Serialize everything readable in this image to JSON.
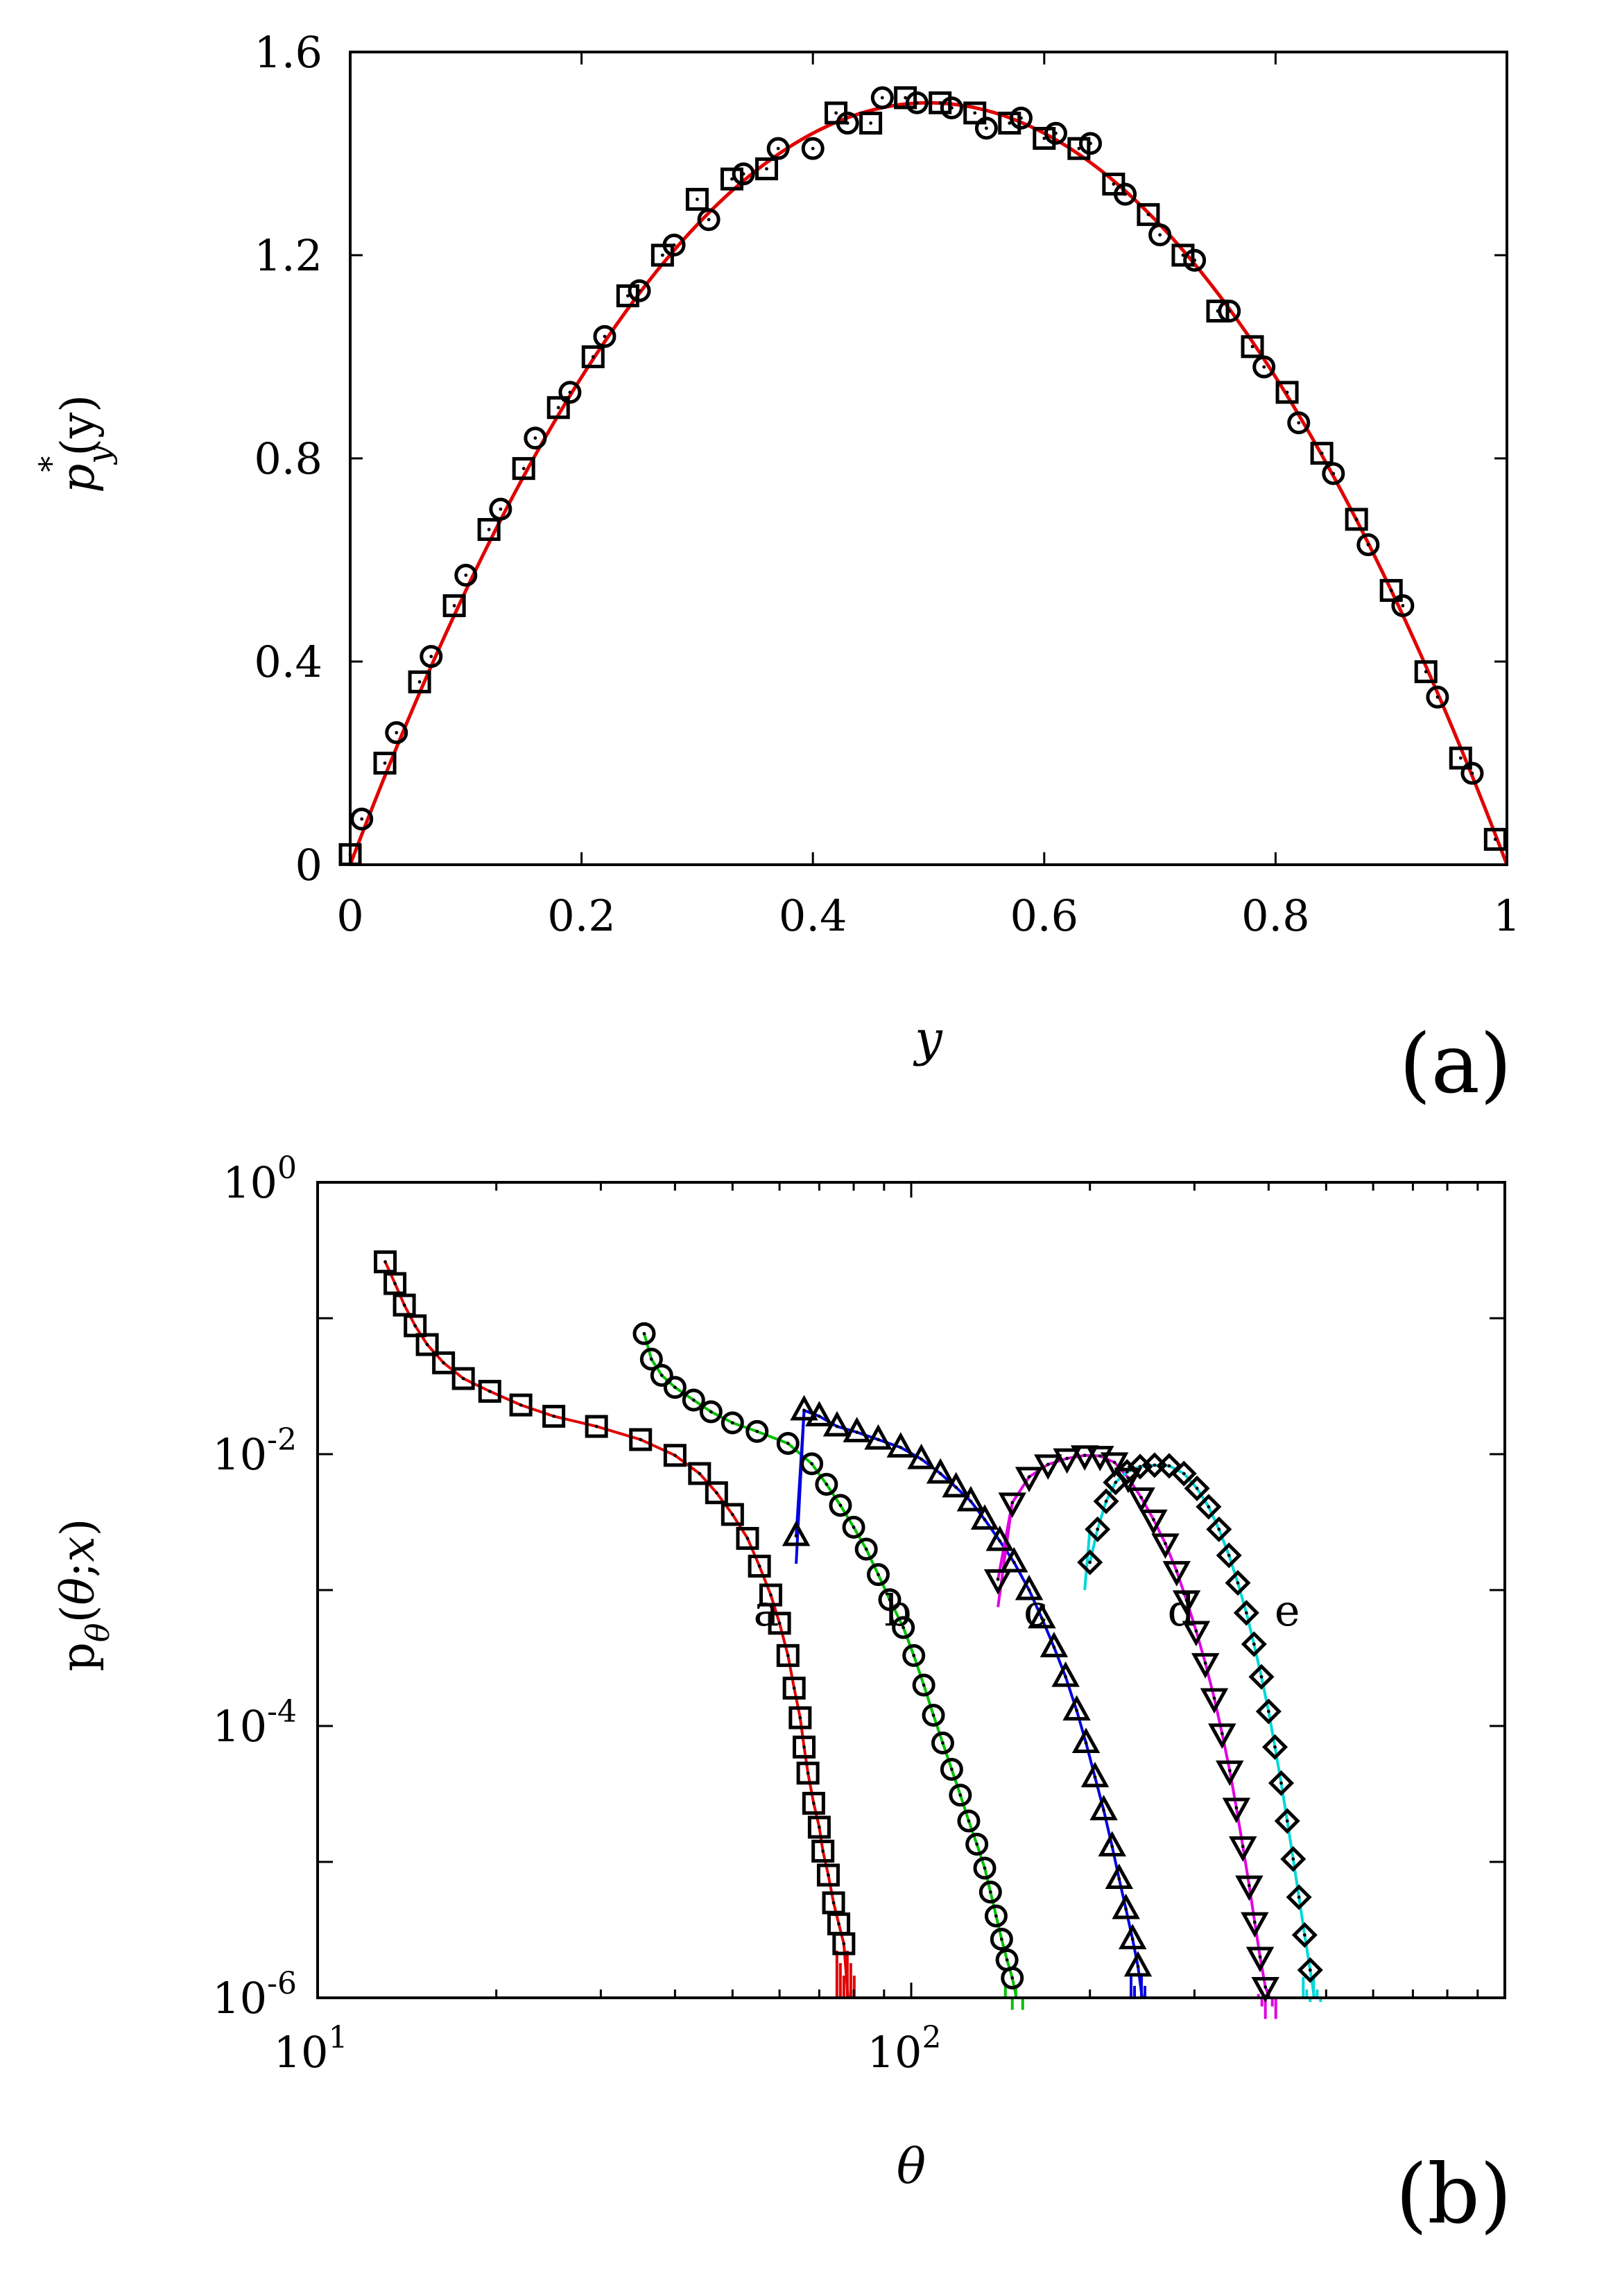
{
  "chart_data": [
    {
      "id": "a",
      "type": "line+scatter",
      "panel_label": "(a)",
      "xlabel": "y",
      "ylabel": "p",
      "ylabel_star": "*",
      "ylabel_sub": "y",
      "ylabel_arg": "(y)",
      "xlim": [
        0,
        1
      ],
      "ylim": [
        0,
        1.6
      ],
      "xticks": [
        0,
        0.2,
        0.4,
        0.6,
        0.8,
        1
      ],
      "xtick_labels": [
        "0",
        "0.2",
        "0.4",
        "0.6",
        "0.8",
        "1"
      ],
      "yticks": [
        0,
        0.4,
        0.8,
        1.2,
        1.6
      ],
      "ytick_labels": [
        "0",
        "0.4",
        "0.8",
        "1.2",
        "1.6"
      ],
      "curve": {
        "name": "theory",
        "color": "#e00000",
        "formula": "6*y*(1-y)"
      },
      "series": [
        {
          "name": "squares",
          "marker": "square",
          "points": [
            [
              0.0,
              0.02
            ],
            [
              0.03,
              0.2
            ],
            [
              0.06,
              0.36
            ],
            [
              0.09,
              0.51
            ],
            [
              0.12,
              0.66
            ],
            [
              0.15,
              0.78
            ],
            [
              0.18,
              0.9
            ],
            [
              0.21,
              1.0
            ],
            [
              0.24,
              1.12
            ],
            [
              0.27,
              1.2
            ],
            [
              0.3,
              1.31
            ],
            [
              0.33,
              1.35
            ],
            [
              0.36,
              1.37
            ],
            [
              0.42,
              1.48
            ],
            [
              0.45,
              1.46
            ],
            [
              0.48,
              1.51
            ],
            [
              0.51,
              1.5
            ],
            [
              0.54,
              1.48
            ],
            [
              0.57,
              1.46
            ],
            [
              0.6,
              1.43
            ],
            [
              0.63,
              1.41
            ],
            [
              0.66,
              1.34
            ],
            [
              0.69,
              1.28
            ],
            [
              0.72,
              1.2
            ],
            [
              0.75,
              1.09
            ],
            [
              0.78,
              1.02
            ],
            [
              0.81,
              0.93
            ],
            [
              0.84,
              0.81
            ],
            [
              0.87,
              0.68
            ],
            [
              0.9,
              0.54
            ],
            [
              0.93,
              0.38
            ],
            [
              0.96,
              0.21
            ],
            [
              0.99,
              0.05
            ]
          ]
        },
        {
          "name": "circles",
          "marker": "circle",
          "points": [
            [
              0.01,
              0.09
            ],
            [
              0.04,
              0.26
            ],
            [
              0.07,
              0.41
            ],
            [
              0.1,
              0.57
            ],
            [
              0.13,
              0.7
            ],
            [
              0.16,
              0.84
            ],
            [
              0.19,
              0.93
            ],
            [
              0.22,
              1.04
            ],
            [
              0.25,
              1.13
            ],
            [
              0.28,
              1.22
            ],
            [
              0.31,
              1.27
            ],
            [
              0.34,
              1.36
            ],
            [
              0.37,
              1.41
            ],
            [
              0.4,
              1.41
            ],
            [
              0.43,
              1.46
            ],
            [
              0.46,
              1.51
            ],
            [
              0.49,
              1.5
            ],
            [
              0.52,
              1.49
            ],
            [
              0.55,
              1.45
            ],
            [
              0.58,
              1.47
            ],
            [
              0.61,
              1.44
            ],
            [
              0.64,
              1.42
            ],
            [
              0.67,
              1.32
            ],
            [
              0.7,
              1.24
            ],
            [
              0.73,
              1.19
            ],
            [
              0.76,
              1.09
            ],
            [
              0.79,
              0.98
            ],
            [
              0.82,
              0.87
            ],
            [
              0.85,
              0.77
            ],
            [
              0.88,
              0.63
            ],
            [
              0.91,
              0.51
            ],
            [
              0.94,
              0.33
            ],
            [
              0.97,
              0.18
            ]
          ]
        }
      ]
    },
    {
      "id": "b",
      "type": "line+scatter",
      "panel_label": "(b)",
      "xlabel": "θ",
      "ylabel": "p",
      "ylabel_sub": "θ",
      "ylabel_arg_open": "(",
      "ylabel_arg_theta": "θ",
      "ylabel_arg_sep": ";",
      "ylabel_arg_x": "x",
      "ylabel_arg_close": ")",
      "xscale": "log",
      "yscale": "log",
      "xlim": [
        10,
        1000
      ],
      "ylim": [
        1e-06,
        1
      ],
      "xtick_labels": [
        {
          "value": 10,
          "base": "10",
          "exp": "1"
        },
        {
          "value": 100,
          "base": "10",
          "exp": "2"
        }
      ],
      "ytick_labels": [
        {
          "value": 1e-06,
          "base": "10",
          "exp": "-6"
        },
        {
          "value": 0.0001,
          "base": "10",
          "exp": "-4"
        },
        {
          "value": 0.01,
          "base": "10",
          "exp": "-2"
        },
        {
          "value": 1,
          "base": "10",
          "exp": "0"
        }
      ],
      "curve_labels": [
        {
          "label": "a",
          "x": 57,
          "y": 0.00055
        },
        {
          "label": "b",
          "x": 95,
          "y": 0.00055
        },
        {
          "label": "c",
          "x": 162,
          "y": 0.00055
        },
        {
          "label": "d",
          "x": 285,
          "y": 0.00055
        },
        {
          "label": "e",
          "x": 430,
          "y": 0.00055
        }
      ],
      "series": [
        {
          "name": "a",
          "color": "#e00000",
          "marker": "square",
          "points": [
            [
              13,
              0.26
            ],
            [
              13.5,
              0.18
            ],
            [
              14,
              0.125
            ],
            [
              14.6,
              0.088
            ],
            [
              15.3,
              0.064
            ],
            [
              16.3,
              0.047
            ],
            [
              17.6,
              0.036
            ],
            [
              19.5,
              0.029
            ],
            [
              22,
              0.023
            ],
            [
              25,
              0.019
            ],
            [
              29.5,
              0.016
            ],
            [
              35,
              0.0128
            ],
            [
              40,
              0.0098
            ],
            [
              44,
              0.0072
            ],
            [
              47,
              0.0052
            ],
            [
              50,
              0.0036
            ],
            [
              53,
              0.0024
            ],
            [
              55.5,
              0.0015
            ],
            [
              58,
              0.00092
            ],
            [
              60,
              0.00057
            ],
            [
              62,
              0.00033
            ],
            [
              63.5,
              0.00019
            ],
            [
              65,
              0.000115
            ],
            [
              66,
              7e-05
            ],
            [
              67,
              4.5e-05
            ],
            [
              68.5,
              2.7e-05
            ],
            [
              70,
              1.8e-05
            ],
            [
              71,
              1.2e-05
            ],
            [
              72.5,
              8e-06
            ],
            [
              74,
              5e-06
            ],
            [
              75.5,
              3.5e-06
            ],
            [
              77,
              2.5e-06
            ]
          ]
        },
        {
          "name": "b",
          "color": "#00c000",
          "marker": "circle",
          "points": [
            [
              35.5,
              0.077
            ],
            [
              36.5,
              0.05
            ],
            [
              38,
              0.038
            ],
            [
              40,
              0.031
            ],
            [
              43,
              0.025
            ],
            [
              46,
              0.0205
            ],
            [
              50,
              0.017
            ],
            [
              55,
              0.0147
            ],
            [
              62,
              0.012
            ],
            [
              68,
              0.0085
            ],
            [
              72,
              0.006
            ],
            [
              76,
              0.0042
            ],
            [
              80,
              0.0029
            ],
            [
              84,
              0.002
            ],
            [
              88,
              0.0013
            ],
            [
              92,
              0.00085
            ],
            [
              97,
              0.00053
            ],
            [
              101,
              0.00033
            ],
            [
              105,
              0.0002
            ],
            [
              109,
              0.00012
            ],
            [
              113,
              7.5e-05
            ],
            [
              117,
              4.8e-05
            ],
            [
              121,
              3.1e-05
            ],
            [
              125,
              2e-05
            ],
            [
              129,
              1.35e-05
            ],
            [
              133,
              9e-06
            ],
            [
              136,
              6e-06
            ],
            [
              139,
              4e-06
            ],
            [
              142,
              2.7e-06
            ],
            [
              145,
              1.9e-06
            ],
            [
              148,
              1.4e-06
            ]
          ]
        },
        {
          "name": "c",
          "color": "#0000e0",
          "marker": "triangle-up",
          "points": [
            [
              64,
              0.0025
            ],
            [
              66,
              0.021
            ],
            [
              70,
              0.019
            ],
            [
              75,
              0.016
            ],
            [
              81,
              0.0145
            ],
            [
              88,
              0.0128
            ],
            [
              96,
              0.0112
            ],
            [
              104,
              0.0092
            ],
            [
              112,
              0.0072
            ],
            [
              119,
              0.0057
            ],
            [
              126,
              0.0045
            ],
            [
              133,
              0.0033
            ],
            [
              141,
              0.0023
            ],
            [
              149,
              0.0016
            ],
            [
              158,
              0.001
            ],
            [
              166,
              0.00062
            ],
            [
              174,
              0.00038
            ],
            [
              182,
              0.00023
            ],
            [
              190,
              0.00013
            ],
            [
              197,
              7.5e-05
            ],
            [
              204,
              4.2e-05
            ],
            [
              211,
              2.4e-05
            ],
            [
              218,
              1.3e-05
            ],
            [
              224,
              7.5e-06
            ],
            [
              230,
              4.5e-06
            ],
            [
              236,
              2.7e-06
            ],
            [
              241,
              1.7e-06
            ]
          ]
        },
        {
          "name": "d",
          "color": "#e000e0",
          "marker": "triangle-down",
          "points": [
            [
              140,
              0.0012
            ],
            [
              148,
              0.0044
            ],
            [
              158,
              0.0068
            ],
            [
              170,
              0.0084
            ],
            [
              183,
              0.0093
            ],
            [
              196,
              0.0098
            ],
            [
              208,
              0.0097
            ],
            [
              220,
              0.0087
            ],
            [
              232,
              0.0067
            ],
            [
              244,
              0.0048
            ],
            [
              256,
              0.0033
            ],
            [
              268,
              0.0022
            ],
            [
              280,
              0.00138
            ],
            [
              291,
              0.00084
            ],
            [
              302,
              0.0005
            ],
            [
              313,
              0.00029
            ],
            [
              324,
              0.00016
            ],
            [
              334,
              8.8e-05
            ],
            [
              344,
              4.7e-05
            ],
            [
              353,
              2.5e-05
            ],
            [
              362,
              1.3e-05
            ],
            [
              371,
              6.7e-06
            ],
            [
              379,
              3.6e-06
            ],
            [
              387,
              2e-06
            ],
            [
              395,
              1.2e-06
            ]
          ]
        },
        {
          "name": "e",
          "color": "#00d8d8",
          "marker": "diamond",
          "points": [
            [
              200,
              0.0016
            ],
            [
              206,
              0.0028
            ],
            [
              213,
              0.0045
            ],
            [
              221,
              0.0062
            ],
            [
              231,
              0.0074
            ],
            [
              243,
              0.0081
            ],
            [
              257,
              0.0083
            ],
            [
              272,
              0.0082
            ],
            [
              288,
              0.0072
            ],
            [
              303,
              0.0056
            ],
            [
              317,
              0.0041
            ],
            [
              330,
              0.0028
            ],
            [
              343,
              0.0018
            ],
            [
              355,
              0.00113
            ],
            [
              367,
              0.00068
            ],
            [
              378,
              0.0004
            ],
            [
              389,
              0.00023
            ],
            [
              400,
              0.000128
            ],
            [
              410,
              7e-05
            ],
            [
              420,
              3.8e-05
            ],
            [
              430,
              2e-05
            ],
            [
              440,
              1.05e-05
            ],
            [
              450,
              5.5e-06
            ],
            [
              460,
              2.9e-06
            ],
            [
              470,
              1.6e-06
            ]
          ]
        }
      ],
      "series_drops": [
        {
          "name": "c",
          "xs": [
            64,
            66
          ]
        },
        {
          "name": "d",
          "xs": [
            140,
            148
          ]
        },
        {
          "name": "e",
          "xs": [
            196,
            200
          ]
        }
      ]
    }
  ]
}
